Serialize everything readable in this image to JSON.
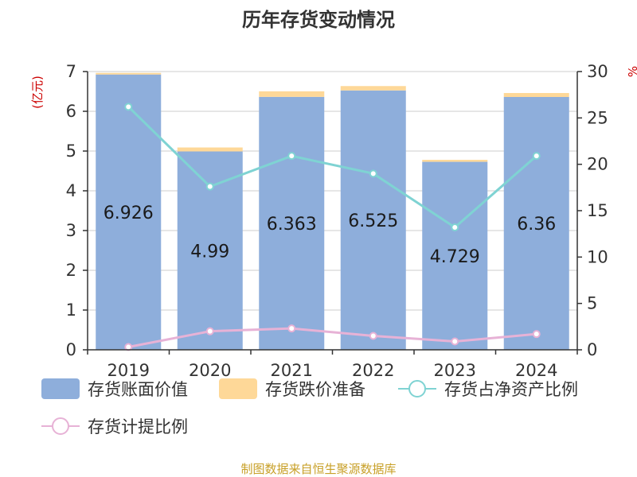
{
  "chart_data": {
    "type": "bar",
    "title": "历年存货变动情况",
    "categories": [
      "2019",
      "2020",
      "2021",
      "2022",
      "2023",
      "2024"
    ],
    "y_left": {
      "unit_label": "(亿元)",
      "ylim": [
        0,
        7
      ],
      "ticks": [
        0,
        1,
        2,
        3,
        4,
        5,
        6,
        7
      ]
    },
    "y_right": {
      "unit_label": "%",
      "ylim": [
        0,
        30
      ],
      "ticks": [
        0,
        5,
        10,
        15,
        20,
        25,
        30
      ]
    },
    "series": [
      {
        "name": "存货账面价值",
        "kind": "bar",
        "axis": "left",
        "stack": "inv",
        "color": "#8eaedb",
        "values": [
          6.926,
          4.99,
          6.363,
          6.525,
          4.729,
          6.36
        ],
        "value_labels": [
          "6.926",
          "4.99",
          "6.363",
          "6.525",
          "4.729",
          "6.36"
        ]
      },
      {
        "name": "存货跌价准备",
        "kind": "bar",
        "axis": "left",
        "stack": "inv",
        "color": "#fed898",
        "values": [
          0.04,
          0.1,
          0.14,
          0.11,
          0.05,
          0.1
        ]
      },
      {
        "name": "存货占净资产比例",
        "kind": "line",
        "axis": "right",
        "color": "#7fd3d3",
        "values": [
          26.2,
          17.6,
          20.9,
          19.0,
          13.2,
          20.9
        ]
      },
      {
        "name": "存货计提比例",
        "kind": "line",
        "axis": "right",
        "color": "#e7b2d6",
        "values": [
          0.3,
          2.0,
          2.3,
          1.5,
          0.9,
          1.7
        ]
      }
    ],
    "grid": true,
    "legend_position": "bottom",
    "source": "制图数据来自恒生聚源数据库"
  }
}
